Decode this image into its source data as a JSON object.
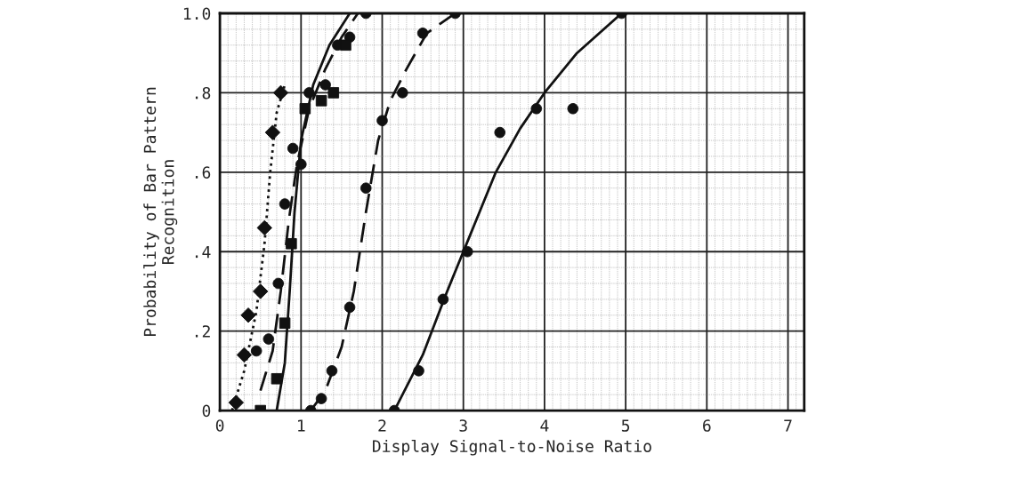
{
  "chart_data": {
    "type": "scatter",
    "xlabel": "Display Signal-to-Noise Ratio",
    "ylabel": "Probability of Bar Pattern\nRecognition",
    "xlim": [
      0,
      7.2
    ],
    "ylim": [
      0,
      1.0
    ],
    "xticks": [
      0,
      1,
      2,
      3,
      4,
      5,
      6,
      7
    ],
    "yticks": [
      0,
      {
        "value": 0.2,
        "label": ".2"
      },
      {
        "value": 0.4,
        "label": ".4"
      },
      {
        "value": 0.6,
        "label": ".6"
      },
      {
        "value": 0.8,
        "label": ".8"
      },
      {
        "value": 1.0,
        "label": "1.0"
      }
    ],
    "grid": true,
    "series": [
      {
        "marker": "diamond",
        "color": "#111111",
        "x": [
          0.2,
          0.3,
          0.35,
          0.5,
          0.55,
          0.65,
          0.75
        ],
        "values": [
          0.02,
          0.14,
          0.24,
          0.3,
          0.46,
          0.7,
          0.8
        ]
      },
      {
        "type": "line",
        "line_style": "dotted",
        "marker": "none",
        "color": "#111111",
        "x": [
          0.15,
          0.3,
          0.45,
          0.55,
          0.62,
          0.7,
          0.8
        ],
        "values": [
          0.0,
          0.1,
          0.25,
          0.42,
          0.6,
          0.75,
          0.82
        ]
      },
      {
        "marker": "circle",
        "color": "#111111",
        "x": [
          0.45,
          0.6,
          0.72,
          0.8,
          0.9,
          1.0,
          1.1,
          1.3,
          1.45,
          1.6,
          1.8
        ],
        "values": [
          0.15,
          0.18,
          0.32,
          0.52,
          0.66,
          0.62,
          0.8,
          0.82,
          0.92,
          0.94,
          1.0
        ]
      },
      {
        "type": "line",
        "line_style": "dashed",
        "marker": "none",
        "color": "#111111",
        "x": [
          0.5,
          0.65,
          0.75,
          0.85,
          0.95,
          1.1,
          1.3,
          1.5,
          1.7
        ],
        "values": [
          0.05,
          0.15,
          0.3,
          0.48,
          0.62,
          0.76,
          0.86,
          0.94,
          1.0
        ]
      },
      {
        "marker": "square",
        "color": "#111111",
        "x": [
          0.5,
          0.7,
          0.8,
          0.88,
          1.05,
          1.25,
          1.4,
          1.55
        ],
        "values": [
          0.0,
          0.08,
          0.22,
          0.42,
          0.76,
          0.78,
          0.8,
          0.92
        ]
      },
      {
        "type": "line",
        "line_style": "solid",
        "marker": "none",
        "color": "#111111",
        "x": [
          0.7,
          0.8,
          0.86,
          0.92,
          1.0,
          1.15,
          1.35,
          1.6
        ],
        "values": [
          0.0,
          0.12,
          0.3,
          0.5,
          0.68,
          0.82,
          0.92,
          1.0
        ]
      },
      {
        "marker": "circle",
        "color": "#111111",
        "x": [
          1.12,
          1.25,
          1.38,
          1.6,
          1.8,
          2.0,
          2.25,
          2.5,
          2.9
        ],
        "values": [
          0.0,
          0.03,
          0.1,
          0.26,
          0.56,
          0.73,
          0.8,
          0.95,
          1.0
        ]
      },
      {
        "type": "line",
        "line_style": "dashed",
        "marker": "none",
        "color": "#111111",
        "x": [
          1.12,
          1.3,
          1.5,
          1.65,
          1.8,
          1.95,
          2.1,
          2.3,
          2.55,
          2.9
        ],
        "values": [
          0.0,
          0.05,
          0.16,
          0.3,
          0.5,
          0.68,
          0.78,
          0.86,
          0.95,
          1.0
        ]
      },
      {
        "marker": "circle",
        "color": "#111111",
        "x": [
          2.15,
          2.45,
          2.75,
          3.05,
          3.45,
          3.9,
          4.35,
          4.95
        ],
        "values": [
          0.0,
          0.1,
          0.28,
          0.4,
          0.7,
          0.76,
          0.76,
          1.0
        ]
      },
      {
        "type": "line",
        "line_style": "solid",
        "marker": "none",
        "color": "#111111",
        "x": [
          2.15,
          2.5,
          2.8,
          3.1,
          3.4,
          3.7,
          4.0,
          4.4,
          4.95
        ],
        "values": [
          0.0,
          0.14,
          0.3,
          0.45,
          0.6,
          0.71,
          0.8,
          0.9,
          1.0
        ]
      }
    ]
  }
}
